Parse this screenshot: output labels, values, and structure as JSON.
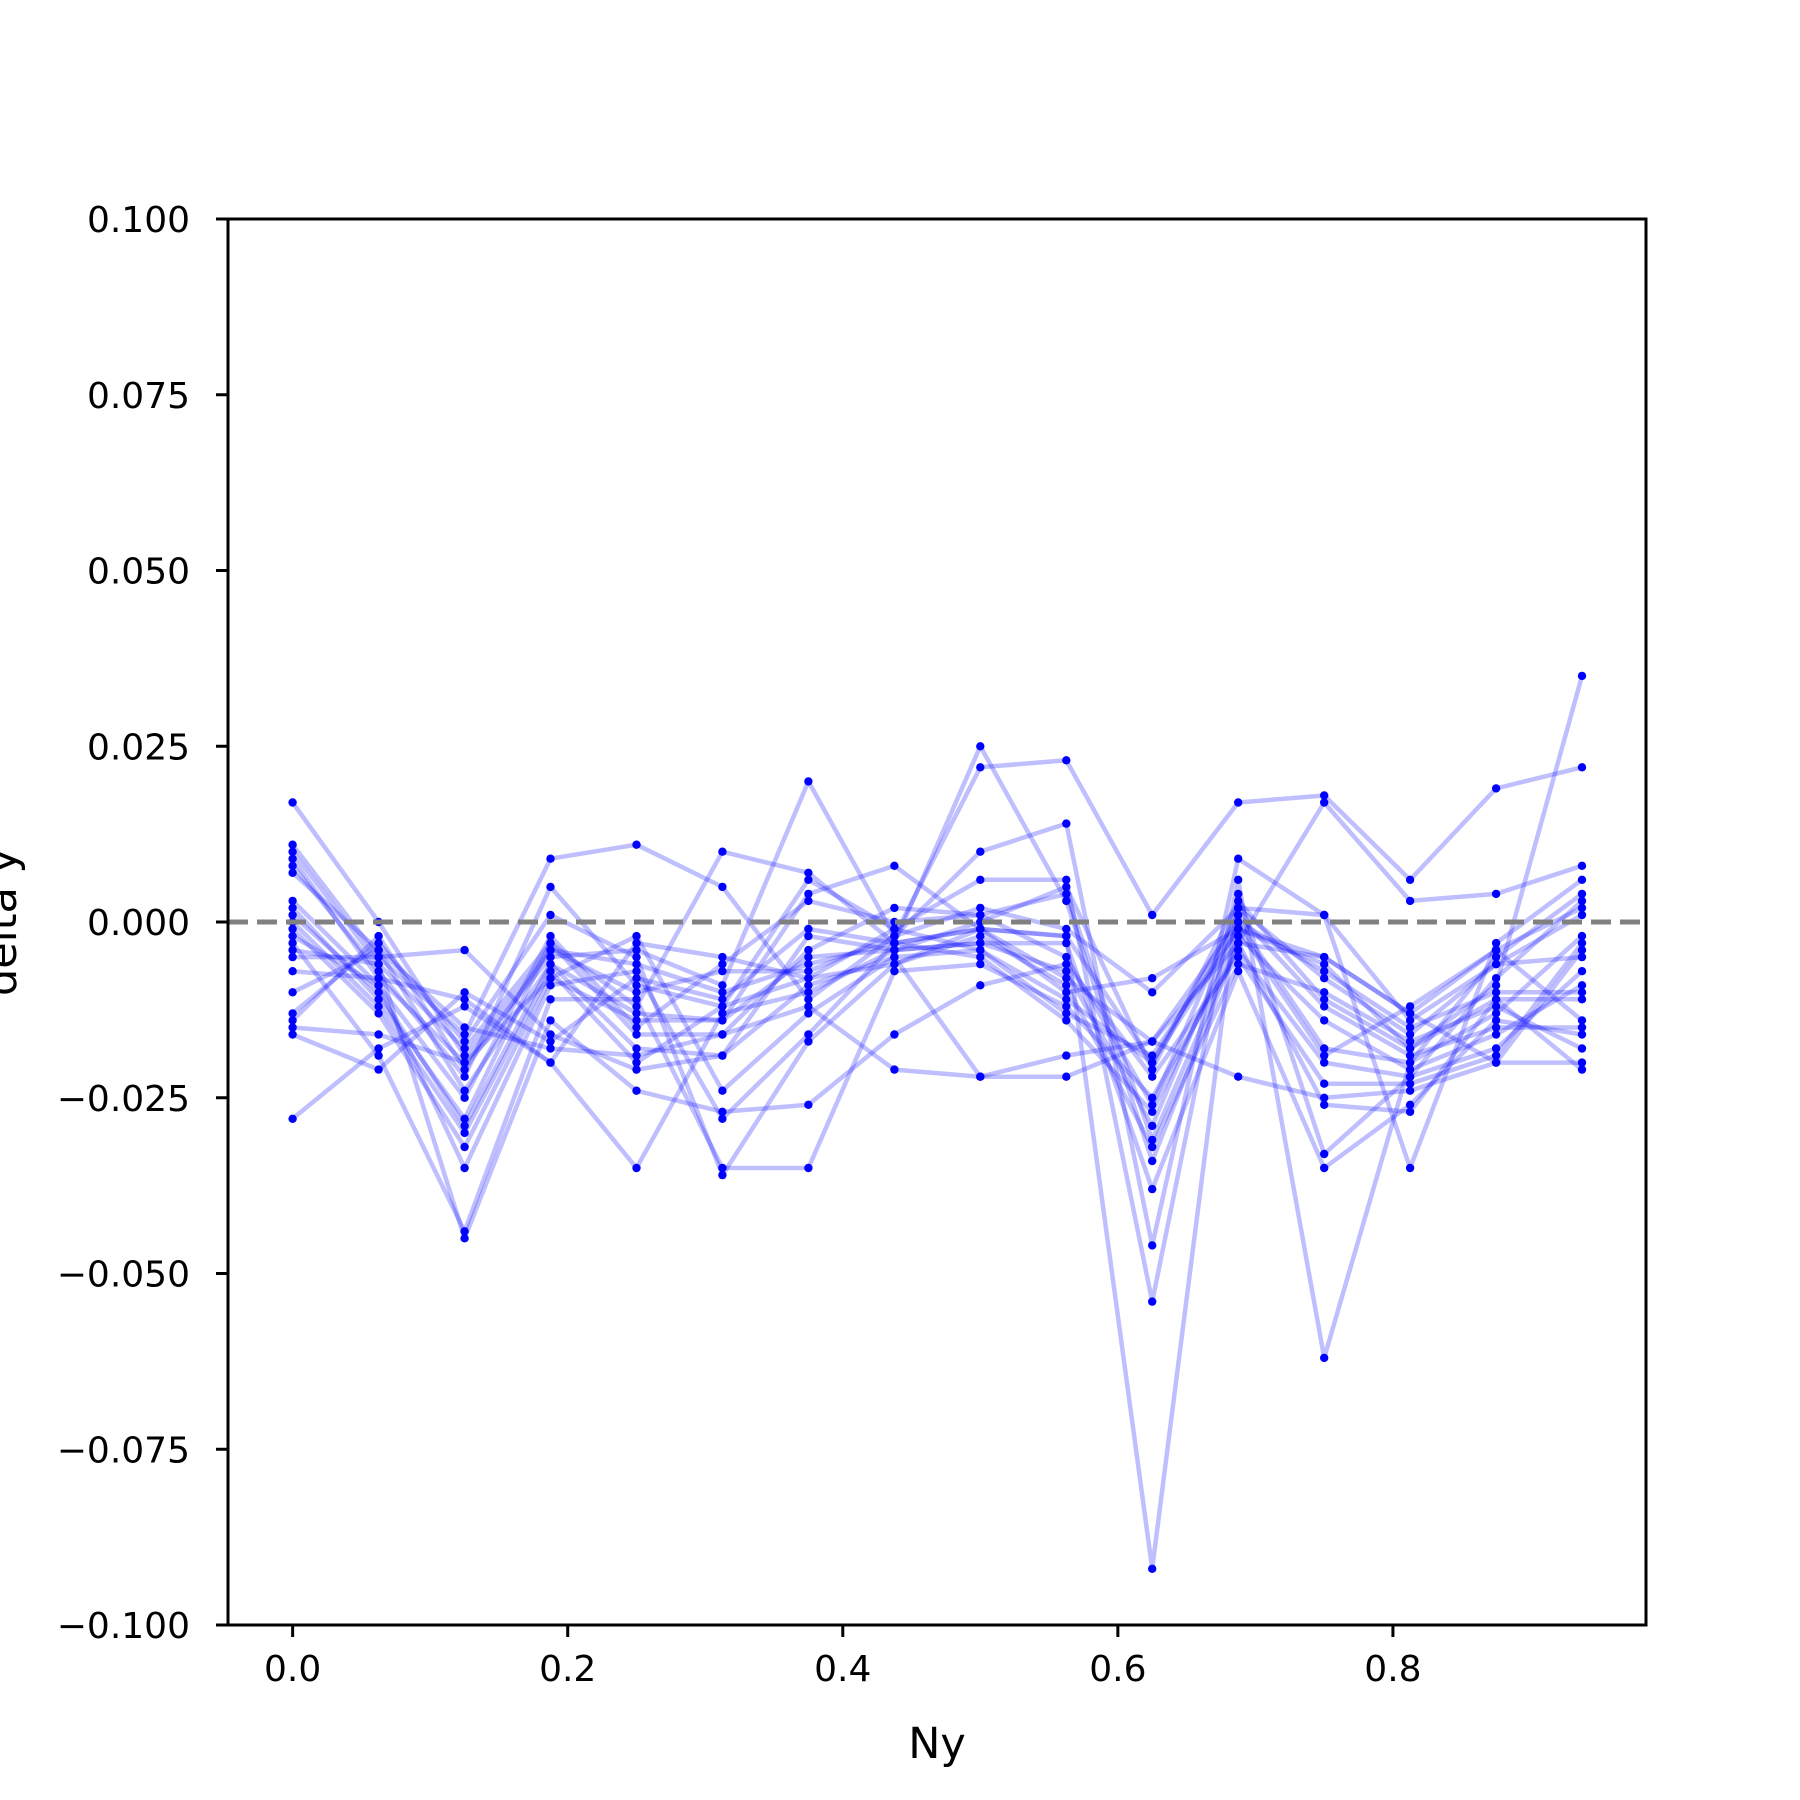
{
  "chart_data": {
    "type": "line",
    "title": "",
    "xlabel": "Ny",
    "ylabel": "delta y",
    "xlim": [
      -0.047,
      0.984
    ],
    "ylim": [
      -0.1,
      0.1
    ],
    "xticks": [
      0.0,
      0.2,
      0.4,
      0.6,
      0.8
    ],
    "xtick_labels": [
      "0.0",
      "0.2",
      "0.4",
      "0.6",
      "0.8"
    ],
    "yticks": [
      -0.1,
      -0.075,
      -0.05,
      -0.025,
      0.0,
      0.025,
      0.05,
      0.075,
      0.1
    ],
    "ytick_labels": [
      "−0.100",
      "−0.075",
      "−0.050",
      "−0.025",
      "0.000",
      "0.025",
      "0.050",
      "0.075",
      "0.100"
    ],
    "reference_line": {
      "y": 0.0,
      "style": "dashed",
      "color": "#808080"
    },
    "grid": false,
    "legend": false,
    "colors": {
      "series": "#0000ff",
      "reference": "#808080",
      "axes": "#000000"
    },
    "x": [
      0.0,
      0.0625,
      0.125,
      0.1875,
      0.25,
      0.3125,
      0.375,
      0.4375,
      0.5,
      0.5625,
      0.625,
      0.6875,
      0.75,
      0.8125,
      0.875,
      0.9375
    ],
    "series": [
      {
        "values": [
          0.017,
          0.0,
          -0.019,
          -0.004,
          -0.006,
          -0.01,
          -0.006,
          -0.003,
          -0.001,
          -0.002,
          -0.02,
          -0.001,
          -0.006,
          -0.018,
          -0.009,
          0.035
        ]
      },
      {
        "values": [
          0.011,
          -0.005,
          -0.016,
          0.009,
          0.011,
          0.005,
          -0.011,
          -0.002,
          0.022,
          0.023,
          0.001,
          0.017,
          0.018,
          0.006,
          0.019,
          0.022
        ]
      },
      {
        "values": [
          0.01,
          -0.006,
          -0.018,
          -0.003,
          -0.012,
          0.01,
          0.007,
          -0.003,
          0.025,
          0.003,
          -0.034,
          -0.003,
          0.017,
          0.003,
          0.004,
          0.008
        ]
      },
      {
        "values": [
          0.009,
          -0.008,
          -0.02,
          -0.005,
          -0.004,
          -0.009,
          0.02,
          -0.002,
          0.01,
          0.014,
          -0.046,
          0.009,
          0.001,
          -0.035,
          -0.003,
          0.006
        ]
      },
      {
        "values": [
          0.008,
          -0.007,
          -0.022,
          0.005,
          -0.009,
          -0.012,
          0.006,
          -0.001,
          0.006,
          0.006,
          -0.054,
          0.006,
          -0.062,
          -0.02,
          -0.005,
          0.004
        ]
      },
      {
        "values": [
          0.007,
          -0.004,
          -0.024,
          -0.006,
          -0.013,
          -0.014,
          0.004,
          0.008,
          -0.001,
          -0.002,
          -0.092,
          0.004,
          -0.033,
          -0.022,
          -0.008,
          0.003
        ]
      },
      {
        "values": [
          0.003,
          -0.009,
          -0.025,
          -0.002,
          -0.015,
          -0.006,
          0.003,
          0.0,
          0.001,
          0.004,
          -0.031,
          -0.003,
          -0.005,
          -0.013,
          -0.004,
          -0.014
        ]
      },
      {
        "values": [
          0.002,
          -0.011,
          -0.028,
          -0.003,
          -0.016,
          -0.016,
          -0.004,
          0.002,
          0.001,
          -0.005,
          -0.026,
          0.002,
          0.001,
          -0.014,
          -0.006,
          -0.005
        ]
      },
      {
        "values": [
          0.001,
          -0.01,
          -0.029,
          -0.006,
          -0.018,
          -0.019,
          -0.002,
          -0.004,
          -0.003,
          -0.007,
          -0.029,
          0.0,
          -0.007,
          -0.015,
          -0.01,
          -0.01
        ]
      },
      {
        "values": [
          0.0,
          -0.012,
          -0.03,
          -0.007,
          -0.02,
          -0.012,
          -0.008,
          -0.006,
          -0.002,
          -0.009,
          -0.032,
          -0.006,
          -0.01,
          -0.017,
          -0.012,
          -0.018
        ]
      },
      {
        "values": [
          -0.001,
          -0.013,
          -0.032,
          -0.008,
          -0.002,
          -0.024,
          -0.013,
          -0.005,
          -0.004,
          -0.011,
          -0.02,
          0.001,
          -0.012,
          -0.019,
          -0.015,
          -0.015
        ]
      },
      {
        "values": [
          -0.002,
          -0.009,
          -0.035,
          -0.009,
          -0.007,
          -0.028,
          -0.016,
          -0.003,
          -0.005,
          -0.014,
          -0.027,
          -0.002,
          -0.014,
          -0.021,
          -0.016,
          -0.009
        ]
      },
      {
        "values": [
          -0.003,
          -0.019,
          -0.044,
          -0.011,
          -0.011,
          -0.035,
          -0.035,
          -0.007,
          -0.006,
          -0.012,
          -0.025,
          -0.004,
          -0.02,
          -0.022,
          -0.018,
          -0.007
        ]
      },
      {
        "values": [
          -0.004,
          -0.006,
          -0.045,
          -0.014,
          -0.024,
          -0.027,
          -0.026,
          -0.016,
          -0.009,
          -0.006,
          -0.022,
          -0.005,
          -0.023,
          -0.023,
          -0.019,
          -0.003
        ]
      },
      {
        "values": [
          -0.005,
          -0.005,
          -0.004,
          -0.016,
          -0.021,
          -0.019,
          -0.009,
          -0.005,
          -0.022,
          -0.022,
          -0.017,
          -0.022,
          -0.025,
          -0.024,
          -0.02,
          -0.02
        ]
      },
      {
        "values": [
          -0.007,
          -0.008,
          -0.011,
          -0.02,
          -0.035,
          -0.013,
          -0.01,
          -0.004,
          -0.003,
          -0.003,
          -0.038,
          -0.007,
          -0.035,
          -0.026,
          -0.014,
          -0.016
        ]
      },
      {
        "values": [
          -0.01,
          -0.004,
          -0.015,
          -0.018,
          -0.019,
          -0.016,
          -0.012,
          -0.021,
          -0.022,
          -0.019,
          -0.017,
          -0.003,
          -0.026,
          -0.027,
          -0.011,
          -0.021
        ]
      },
      {
        "values": [
          -0.013,
          -0.003,
          -0.017,
          0.001,
          -0.005,
          -0.036,
          -0.017,
          -0.006,
          -0.001,
          -0.01,
          -0.008,
          -0.001,
          -0.005,
          -0.013,
          -0.02,
          -0.004
        ]
      },
      {
        "values": [
          -0.014,
          -0.002,
          -0.021,
          -0.004,
          -0.01,
          -0.007,
          -0.007,
          -0.002,
          0.002,
          -0.001,
          -0.01,
          0.002,
          -0.008,
          -0.016,
          -0.006,
          0.001
        ]
      },
      {
        "values": [
          -0.015,
          -0.016,
          -0.02,
          -0.008,
          -0.014,
          -0.014,
          -0.005,
          -0.004,
          0.0,
          0.005,
          -0.021,
          0.003,
          -0.011,
          -0.018,
          -0.011,
          -0.011
        ]
      },
      {
        "values": [
          -0.016,
          -0.021,
          -0.01,
          -0.017,
          -0.008,
          -0.011,
          -0.001,
          -0.003,
          -0.001,
          -0.008,
          -0.017,
          0.0,
          -0.018,
          -0.02,
          -0.013,
          -0.002
        ]
      },
      {
        "values": [
          -0.028,
          -0.018,
          -0.012,
          -0.02,
          -0.003,
          -0.005,
          -0.008,
          -0.001,
          -0.004,
          -0.013,
          -0.019,
          -0.001,
          -0.019,
          -0.012,
          -0.004,
          0.002
        ]
      }
    ]
  }
}
